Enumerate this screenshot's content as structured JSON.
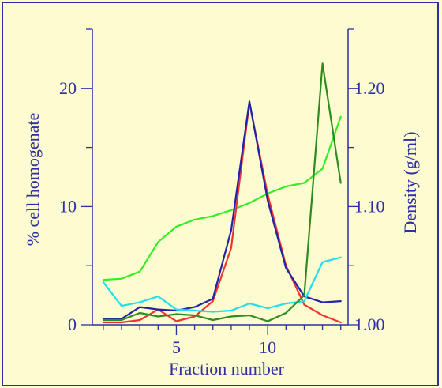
{
  "chart_data": {
    "type": "line",
    "title": "",
    "xlabel": "Fraction number",
    "ylabel": "% cell homogenate",
    "y2label": "Density (g/ml)",
    "x_ticks": [
      5,
      10
    ],
    "x_range": [
      0.4,
      14.4
    ],
    "y_ticks": [
      0,
      10,
      20
    ],
    "ylim": [
      0,
      25
    ],
    "y2_ticks": [
      "1.00",
      "1.10",
      "1.20"
    ],
    "y2lim": [
      1.0,
      1.25
    ],
    "grid": false,
    "legend": "none",
    "x": [
      1,
      2,
      3,
      4,
      5,
      6,
      7,
      8,
      9,
      10,
      11,
      12,
      13,
      14
    ],
    "series": [
      {
        "axis": "right",
        "color": "#33ee22",
        "values": [
          1.038,
          1.039,
          1.045,
          1.07,
          1.083,
          1.089,
          1.092,
          1.097,
          1.103,
          1.111,
          1.117,
          1.12,
          1.132,
          1.176
        ]
      },
      {
        "axis": "left",
        "color": "#ee3333",
        "values": [
          0.2,
          0.2,
          0.4,
          1.3,
          0.3,
          0.7,
          2.0,
          6.5,
          18.8,
          11.0,
          5.0,
          1.7,
          0.8,
          0.2
        ]
      },
      {
        "axis": "left",
        "color": "#2222aa",
        "values": [
          0.5,
          0.5,
          1.5,
          1.3,
          1.2,
          1.5,
          2.2,
          8.0,
          18.9,
          10.5,
          4.8,
          2.4,
          1.9,
          2.0
        ]
      },
      {
        "axis": "left",
        "color": "#22ddee",
        "values": [
          3.6,
          1.6,
          1.9,
          2.4,
          1.3,
          1.2,
          1.1,
          1.2,
          1.8,
          1.4,
          1.8,
          2.0,
          5.3,
          5.7
        ]
      },
      {
        "axis": "left",
        "color": "#2e8b22",
        "values": [
          0.4,
          0.4,
          1.0,
          0.7,
          0.9,
          0.8,
          0.4,
          0.7,
          0.8,
          0.3,
          1.0,
          2.5,
          22.1,
          12.0
        ]
      }
    ]
  }
}
